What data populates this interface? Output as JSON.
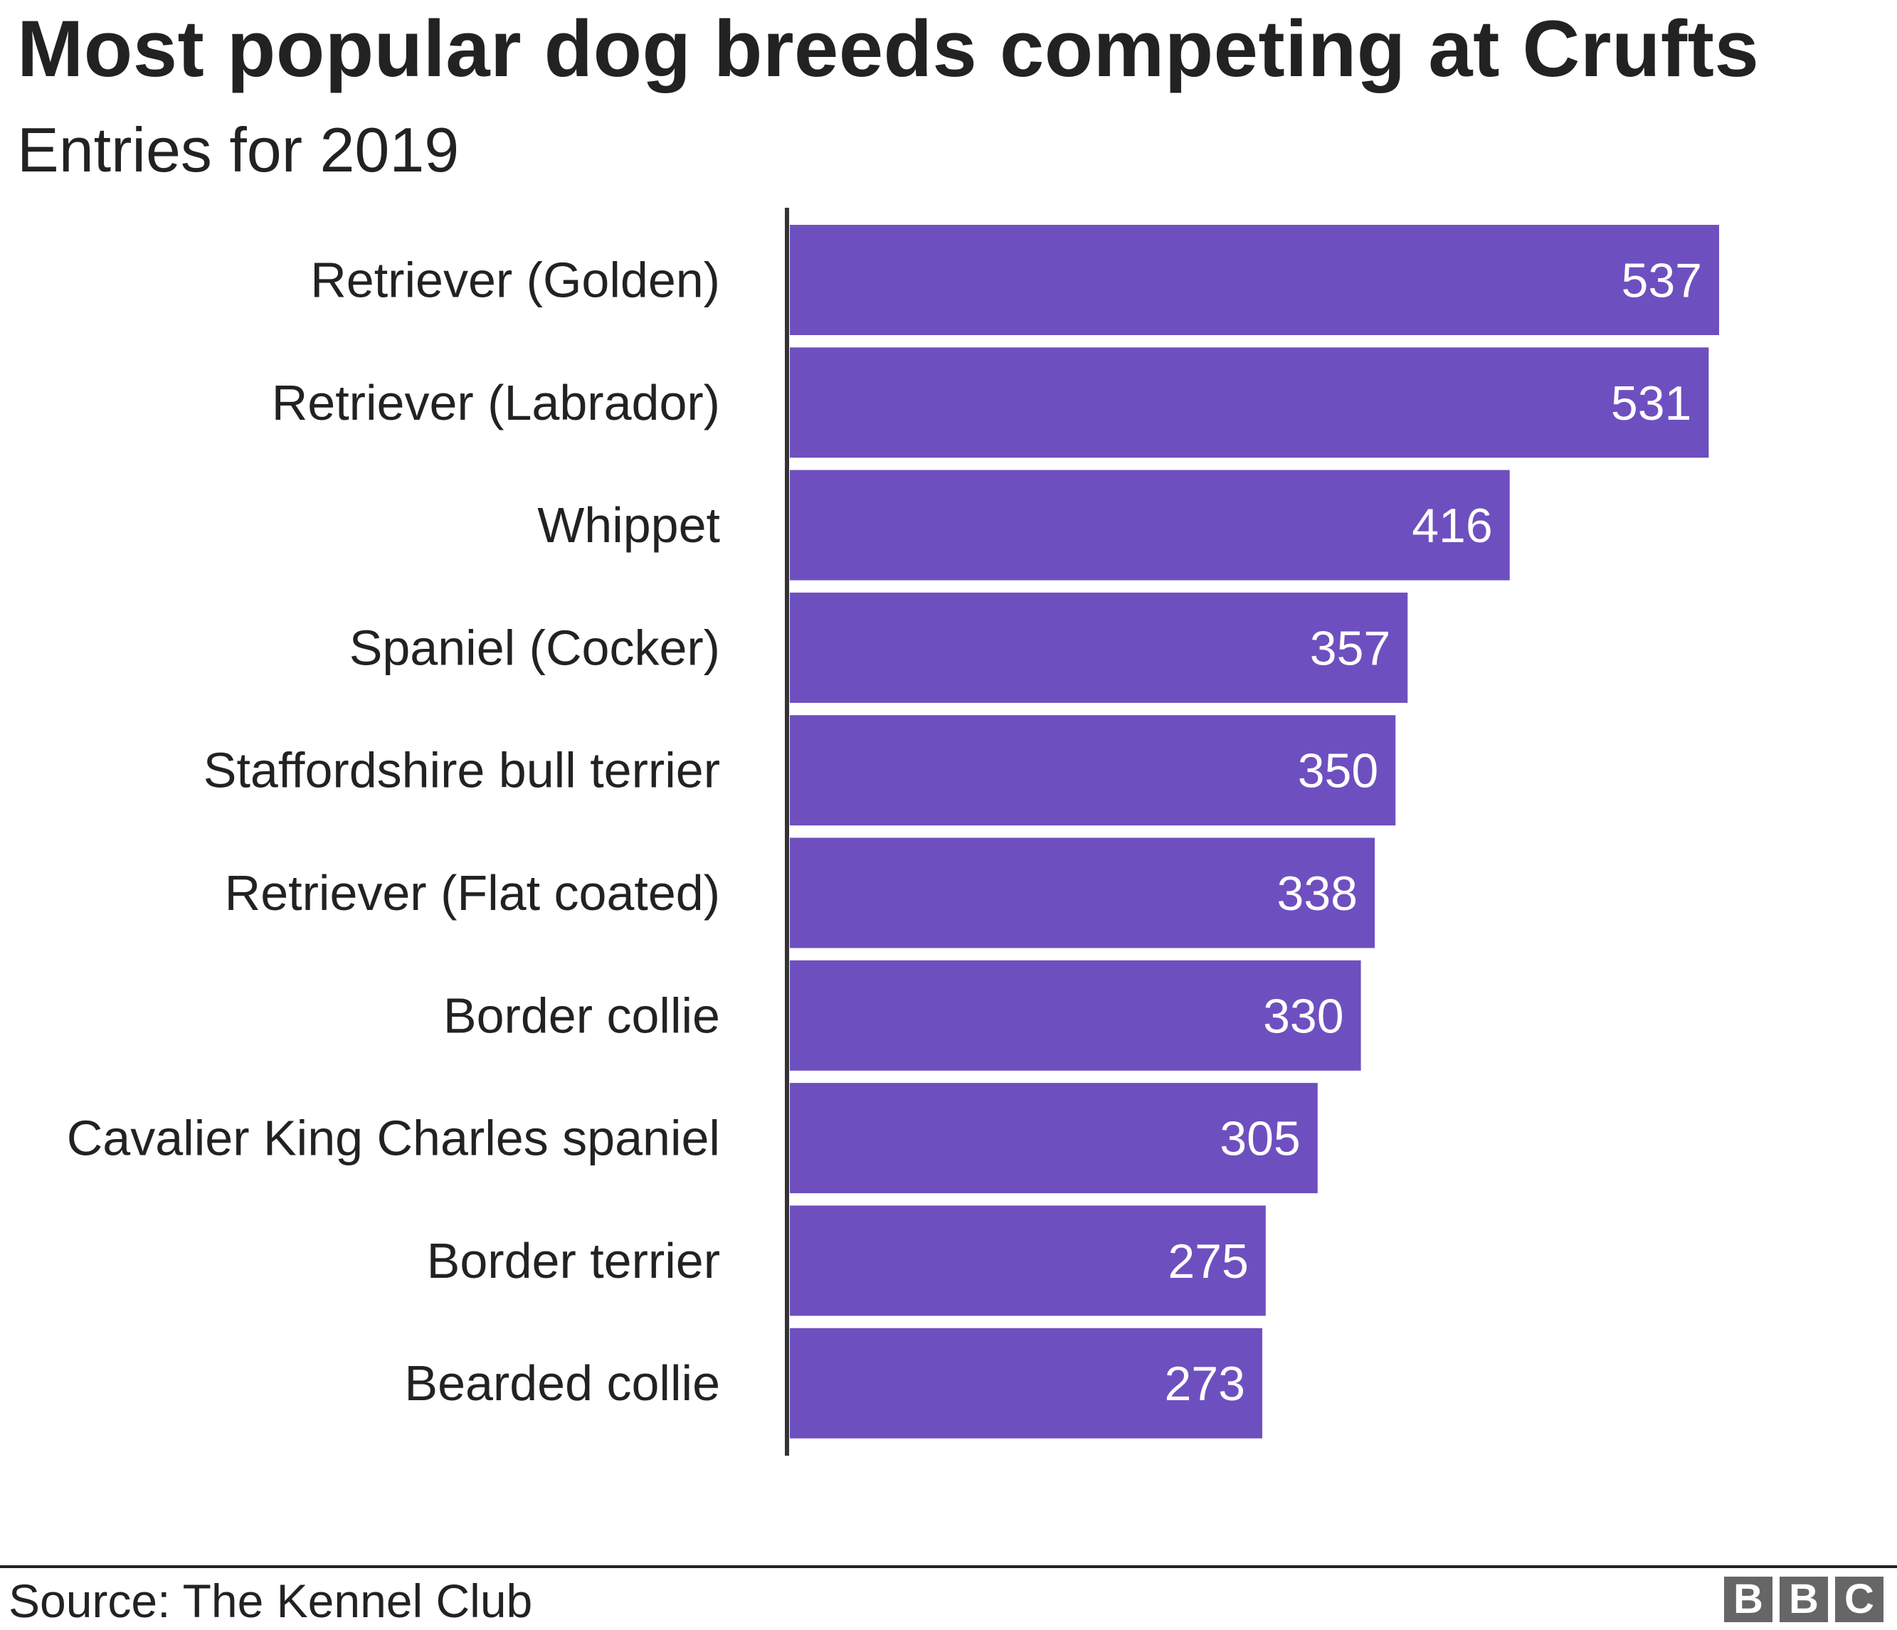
{
  "chart_data": {
    "type": "bar",
    "orientation": "horizontal",
    "title": "Most popular dog breeds competing at Crufts",
    "subtitle": "Entries for 2019",
    "categories": [
      "Retriever (Golden)",
      "Retriever (Labrador)",
      "Whippet",
      "Spaniel (Cocker)",
      "Staffordshire bull terrier",
      "Retriever (Flat coated)",
      "Border collie",
      "Cavalier King Charles spaniel",
      "Border terrier",
      "Bearded collie"
    ],
    "values": [
      537,
      531,
      416,
      357,
      350,
      338,
      330,
      305,
      275,
      273
    ],
    "xlim": [
      0,
      550
    ],
    "grid": false,
    "data_labels": true,
    "bar_color": "#6e4fbf",
    "label_color": "#ffffff"
  },
  "source": "Source: The Kennel Club",
  "logo": {
    "letters": [
      "B",
      "B",
      "C"
    ],
    "color": "#666666"
  }
}
